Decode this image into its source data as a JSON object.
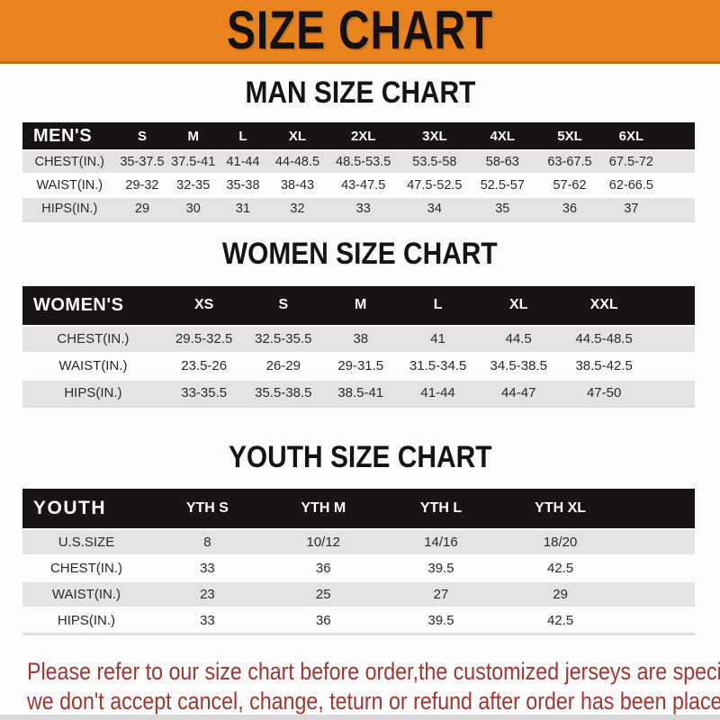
{
  "banner": {
    "title": "SIZE CHART"
  },
  "sections": [
    {
      "id": "men",
      "title": "MAN SIZE CHART",
      "header": [
        "MEN'S",
        "S",
        "M",
        "L",
        "XL",
        "2XL",
        "3XL",
        "4XL",
        "5XL",
        "6XL"
      ],
      "rows": [
        [
          "CHEST(IN.)",
          "35-37.5",
          "37.5-41",
          "41-44",
          "44-48.5",
          "48.5-53.5",
          "53.5-58",
          "58-63",
          "63-67.5",
          "67.5-72"
        ],
        [
          "WAIST(IN.)",
          "29-32",
          "32-35",
          "35-38",
          "38-43",
          "43-47.5",
          "47.5-52.5",
          "52.5-57",
          "57-62",
          "62-66.5"
        ],
        [
          "HIPS(IN.)",
          "29",
          "30",
          "31",
          "32",
          "33",
          "34",
          "35",
          "36",
          "37"
        ]
      ]
    },
    {
      "id": "women",
      "title": "WOMEN SIZE CHART",
      "header": [
        "WOMEN'S",
        "XS",
        "S",
        "M",
        "L",
        "XL",
        "XXL"
      ],
      "rows": [
        [
          "CHEST(IN.)",
          "29.5-32.5",
          "32.5-35.5",
          "38",
          "41",
          "44.5",
          "44.5-48.5"
        ],
        [
          "WAIST(IN.)",
          "23.5-26",
          "26-29",
          "29-31.5",
          "31.5-34.5",
          "34.5-38.5",
          "38.5-42.5"
        ],
        [
          "HIPS(IN.)",
          "33-35.5",
          "35.5-38.5",
          "38.5-41",
          "41-44",
          "44-47",
          "47-50"
        ]
      ]
    },
    {
      "id": "youth",
      "title": "YOUTH SIZE CHART",
      "header": [
        "YOUTH",
        "YTH S",
        "YTH M",
        "YTH L",
        "YTH XL"
      ],
      "rows": [
        [
          "U.S.SIZE",
          "8",
          "10/12",
          "14/16",
          "18/20"
        ],
        [
          "CHEST(IN.)",
          "33",
          "36",
          "39.5",
          "42.5"
        ],
        [
          "WAIST(IN.)",
          "23",
          "25",
          "27",
          "29"
        ],
        [
          "HIPS(IN.)",
          "33",
          "36",
          "39.5",
          "42.5"
        ]
      ]
    }
  ],
  "disclaimer": {
    "line1": "Please refer to our size chart before order,the customized jerseys are special products,",
    "line2": "we don't accept cancel, change, teturn or refund after order has been placed!"
  },
  "colors": {
    "banner_orange": "#E8831E",
    "header_black": "#171412",
    "row_gray": "#E4E3E2",
    "disclaimer_red": "#A33430"
  }
}
